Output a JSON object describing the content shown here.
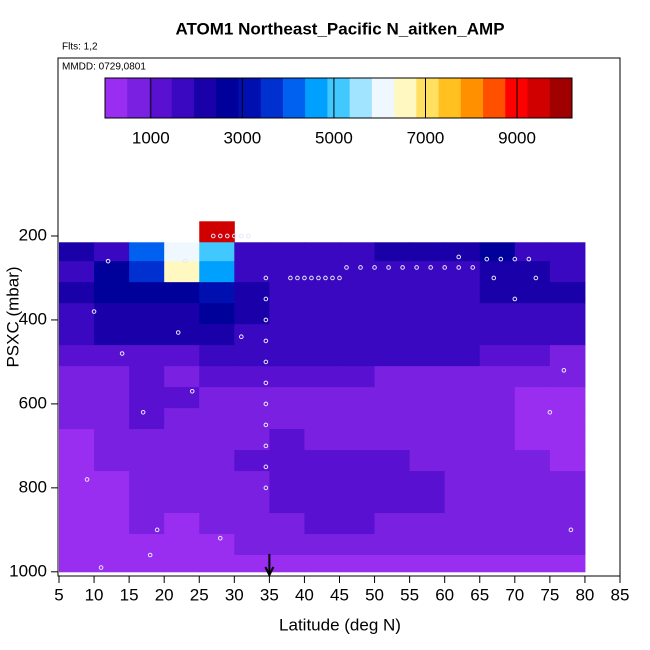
{
  "chart_data": {
    "type": "heatmap",
    "title": "ATOM1 Northeast_Pacific N_aitken_AMP",
    "subtitle": "Flts: 1,2",
    "annotation": "MMDD: 0729,0801",
    "xlabel": "Latitude (deg N)",
    "ylabel": "PSXC (mbar)",
    "xlim": [
      5,
      85
    ],
    "ylim": [
      1010,
      -224
    ],
    "xticks": [
      5,
      10,
      15,
      20,
      25,
      30,
      35,
      40,
      45,
      50,
      55,
      60,
      65,
      70,
      75,
      80,
      85
    ],
    "yticks": [
      200,
      400,
      600,
      800,
      1000
    ],
    "x_edges": [
      5,
      10,
      15,
      20,
      25,
      30,
      35,
      40,
      45,
      50,
      55,
      60,
      65,
      70,
      75,
      80
    ],
    "y_edges": [
      165,
      215,
      260,
      310,
      360,
      410,
      460,
      510,
      560,
      610,
      660,
      710,
      760,
      810,
      860,
      910,
      960,
      1000
    ],
    "z": [
      [
        null,
        null,
        null,
        null,
        9500,
        null,
        null,
        null,
        null,
        null,
        null,
        null,
        null,
        null,
        null
      ],
      [
        2000,
        1500,
        4000,
        6000,
        5000,
        1800,
        1800,
        1700,
        1800,
        2000,
        2000,
        2200,
        2500,
        1800,
        1800
      ],
      [
        1500,
        2500,
        3500,
        6500,
        4500,
        1800,
        1700,
        1700,
        1800,
        1800,
        1700,
        1600,
        2000,
        2200,
        1800
      ],
      [
        2000,
        2500,
        2800,
        2800,
        3000,
        2200,
        1800,
        1800,
        1800,
        1800,
        1800,
        1900,
        2200,
        2200,
        2000
      ],
      [
        1800,
        2000,
        2200,
        2300,
        2600,
        2000,
        1700,
        1700,
        1700,
        1700,
        1700,
        1700,
        1800,
        1600,
        1700
      ],
      [
        1800,
        2000,
        2000,
        2000,
        2400,
        1900,
        1700,
        1700,
        1700,
        1700,
        1700,
        1700,
        1600,
        1500,
        1600
      ],
      [
        1200,
        1200,
        1400,
        1300,
        1500,
        1500,
        1800,
        1800,
        1800,
        1800,
        1700,
        1600,
        1200,
        1000,
        900
      ],
      [
        800,
        900,
        1000,
        900,
        1000,
        1000,
        1000,
        1000,
        1000,
        900,
        900,
        800,
        700,
        600,
        500
      ],
      [
        700,
        900,
        1200,
        1000,
        900,
        900,
        900,
        800,
        800,
        700,
        700,
        600,
        500,
        400,
        300
      ],
      [
        500,
        800,
        1200,
        900,
        700,
        800,
        800,
        800,
        700,
        700,
        600,
        500,
        500,
        400,
        300
      ],
      [
        400,
        700,
        900,
        700,
        600,
        900,
        1000,
        900,
        800,
        800,
        700,
        600,
        500,
        400,
        300
      ],
      [
        300,
        500,
        700,
        600,
        600,
        1000,
        1400,
        1300,
        1200,
        1000,
        900,
        800,
        600,
        500,
        400
      ],
      [
        300,
        400,
        600,
        500,
        600,
        900,
        1300,
        1400,
        1200,
        1100,
        1000,
        900,
        700,
        600,
        500
      ],
      [
        300,
        400,
        500,
        500,
        600,
        800,
        1100,
        1200,
        1200,
        1100,
        1000,
        900,
        800,
        700,
        600
      ],
      [
        300,
        400,
        500,
        400,
        500,
        700,
        900,
        1000,
        1000,
        900,
        900,
        800,
        700,
        700,
        600
      ],
      [
        300,
        300,
        400,
        400,
        400,
        500,
        600,
        700,
        700,
        700,
        700,
        600,
        600,
        600,
        500
      ],
      [
        300,
        300,
        300,
        300,
        300,
        300,
        400,
        400,
        400,
        400,
        400,
        400,
        400,
        300,
        300
      ]
    ],
    "zlim": [
      0,
      10200
    ],
    "colorbar_ticks": [
      1000,
      3000,
      5000,
      7000,
      9000
    ],
    "colors": [
      "#9a2ef0",
      "#7a20e0",
      "#5a10d0",
      "#3a08c0",
      "#1a00a8",
      "#00009a",
      "#0010b0",
      "#0030d0",
      "#0060f0",
      "#00a0ff",
      "#40c8ff",
      "#a0e4ff",
      "#f0f8ff",
      "#fff8c0",
      "#ffe060",
      "#ffc020",
      "#ff9000",
      "#ff5000",
      "#ff0000",
      "#d00000",
      "#a00000"
    ],
    "track": {
      "color": "#e8e8ff",
      "x": [
        27,
        28,
        29,
        30,
        31,
        32,
        38,
        39,
        40,
        41,
        42,
        43,
        44,
        45,
        46,
        48,
        50,
        52,
        54,
        56,
        58,
        60,
        62,
        64,
        66,
        68,
        70,
        72,
        34.5,
        34.5,
        34.5,
        34.5,
        34.5,
        34.5,
        34.5,
        34.5,
        34.5,
        34.5,
        34.5,
        12,
        14,
        17,
        19,
        11,
        23,
        24,
        28,
        18,
        9,
        31,
        73,
        75,
        78,
        77,
        70,
        62,
        67,
        10,
        22
      ],
      "y": [
        200,
        200,
        200,
        200,
        200,
        200,
        300,
        300,
        300,
        300,
        300,
        300,
        300,
        300,
        275,
        275,
        275,
        275,
        275,
        275,
        275,
        275,
        275,
        275,
        255,
        255,
        255,
        255,
        300,
        350,
        400,
        450,
        500,
        550,
        600,
        650,
        700,
        750,
        800,
        260,
        480,
        620,
        900,
        990,
        260,
        570,
        920,
        960,
        780,
        440,
        300,
        620,
        900,
        520,
        350,
        250,
        300,
        380,
        430
      ]
    },
    "arrow_lat": 35
  }
}
